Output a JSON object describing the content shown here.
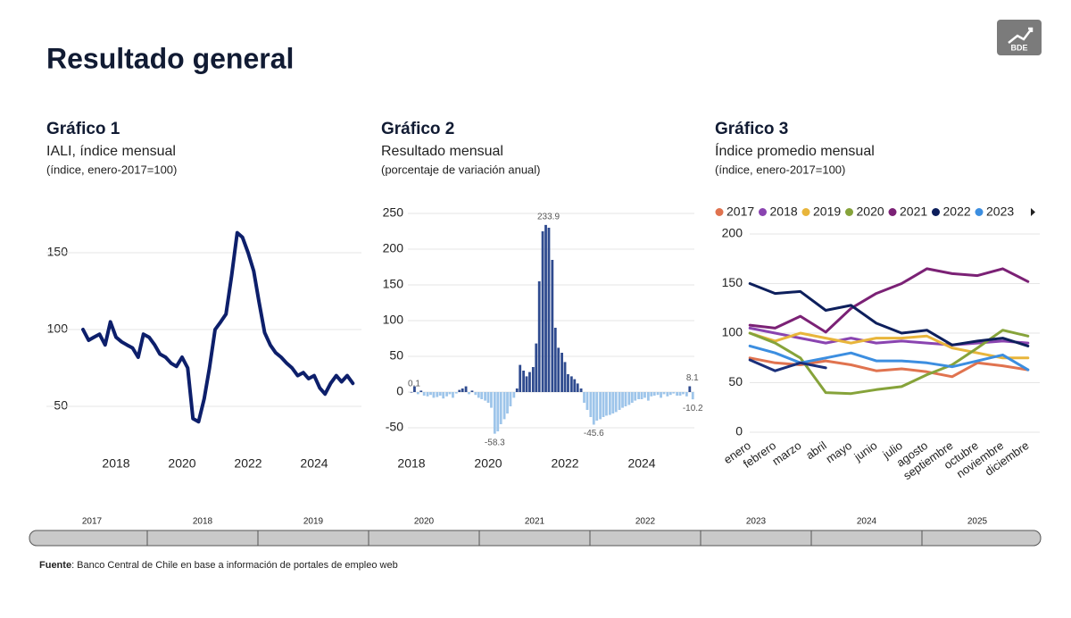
{
  "header": {
    "title": "Resultado general",
    "logo": "BDE"
  },
  "chart_data": [
    {
      "type": "line",
      "title": "Gráfico 1",
      "subtitle": "IALI, índice mensual",
      "note": "(índice, enero-2017=100)",
      "color": "#0d1f6b",
      "grid": true,
      "x": [
        2017.0,
        2017.17,
        2017.33,
        2017.5,
        2017.67,
        2017.83,
        2018.0,
        2018.17,
        2018.33,
        2018.5,
        2018.67,
        2018.83,
        2019.0,
        2019.17,
        2019.33,
        2019.5,
        2019.67,
        2019.83,
        2020.0,
        2020.17,
        2020.33,
        2020.5,
        2020.67,
        2020.83,
        2021.0,
        2021.17,
        2021.33,
        2021.5,
        2021.67,
        2021.83,
        2022.0,
        2022.17,
        2022.33,
        2022.5,
        2022.67,
        2022.83,
        2023.0,
        2023.17,
        2023.33,
        2023.5,
        2023.67,
        2023.83,
        2024.0,
        2024.17,
        2024.33,
        2024.5,
        2024.67,
        2024.83,
        2025.0,
        2025.17
      ],
      "values": [
        100,
        93,
        95,
        97,
        90,
        105,
        95,
        92,
        90,
        88,
        82,
        97,
        95,
        90,
        84,
        82,
        78,
        76,
        82,
        75,
        42,
        40,
        55,
        75,
        100,
        105,
        110,
        135,
        163,
        160,
        150,
        138,
        118,
        98,
        90,
        85,
        82,
        78,
        75,
        70,
        72,
        68,
        70,
        62,
        58,
        65,
        70,
        66,
        70,
        65
      ],
      "xlim": [
        2016.8,
        2025.5
      ],
      "xticks": [
        2018,
        2020,
        2022,
        2024
      ],
      "ylim": [
        35,
        170
      ],
      "yticks": [
        50,
        100,
        150
      ]
    },
    {
      "type": "bar",
      "title": "Gráfico 2",
      "subtitle": "Resultado mensual",
      "note": "(porcentaje de variación anual)",
      "color": "#2f4b8f",
      "negative_color": "#9ec5ea",
      "grid": true,
      "x": [
        2018.0,
        2018.08,
        2018.17,
        2018.25,
        2018.33,
        2018.42,
        2018.5,
        2018.58,
        2018.67,
        2018.75,
        2018.83,
        2018.92,
        2019.0,
        2019.08,
        2019.17,
        2019.25,
        2019.33,
        2019.42,
        2019.5,
        2019.58,
        2019.67,
        2019.75,
        2019.83,
        2019.92,
        2020.0,
        2020.08,
        2020.17,
        2020.25,
        2020.33,
        2020.42,
        2020.5,
        2020.58,
        2020.67,
        2020.75,
        2020.83,
        2020.92,
        2021.0,
        2021.08,
        2021.17,
        2021.25,
        2021.33,
        2021.42,
        2021.5,
        2021.58,
        2021.67,
        2021.75,
        2021.83,
        2021.92,
        2022.0,
        2022.08,
        2022.17,
        2022.25,
        2022.33,
        2022.42,
        2022.5,
        2022.58,
        2022.67,
        2022.75,
        2022.83,
        2022.92,
        2023.0,
        2023.08,
        2023.17,
        2023.25,
        2023.33,
        2023.42,
        2023.5,
        2023.58,
        2023.67,
        2023.75,
        2023.83,
        2023.92,
        2024.0,
        2024.08,
        2024.17,
        2024.25,
        2024.33,
        2024.42,
        2024.5,
        2024.58,
        2024.67,
        2024.75,
        2024.83,
        2024.92,
        2025.0,
        2025.08,
        2025.17,
        2025.25,
        2025.33
      ],
      "values": [
        0.1,
        8,
        -3,
        2,
        -5,
        -6,
        -4,
        -8,
        -7,
        -5,
        -9,
        -6,
        -3,
        -8,
        -2,
        3,
        5,
        8,
        -3,
        2,
        -4,
        -8,
        -10,
        -12,
        -15,
        -22,
        -58.3,
        -55,
        -45,
        -38,
        -30,
        -20,
        -8,
        5,
        38,
        30,
        22,
        28,
        35,
        68,
        155,
        225,
        233.9,
        230,
        185,
        90,
        62,
        55,
        42,
        25,
        22,
        18,
        12,
        5,
        -15,
        -25,
        -35,
        -45.6,
        -40,
        -38,
        -35,
        -33,
        -32,
        -30,
        -28,
        -25,
        -22,
        -20,
        -18,
        -15,
        -12,
        -10,
        -10,
        -8,
        -12,
        -6,
        -5,
        -4,
        -8,
        -3,
        -6,
        -4,
        -2,
        -5,
        -5,
        -3,
        -6,
        8.1,
        -10.2
      ],
      "value_labels": [
        "0.1",
        null,
        null,
        null,
        null,
        null,
        null,
        null,
        null,
        null,
        null,
        null,
        null,
        null,
        null,
        null,
        null,
        null,
        null,
        null,
        null,
        null,
        null,
        null,
        null,
        null,
        "-58.3",
        null,
        null,
        null,
        null,
        null,
        null,
        null,
        null,
        null,
        null,
        null,
        null,
        null,
        null,
        null,
        "233.9",
        null,
        null,
        null,
        null,
        null,
        null,
        null,
        null,
        null,
        null,
        null,
        null,
        null,
        null,
        "-45.6",
        null,
        null,
        null,
        null,
        null,
        null,
        null,
        null,
        null,
        null,
        null,
        null,
        null,
        null,
        null,
        null,
        null,
        null,
        null,
        null,
        null,
        null,
        null,
        null,
        null,
        null,
        null,
        null,
        null,
        "8.1",
        "-10.2"
      ],
      "xlim": [
        2017.9,
        2025.45
      ],
      "xticks": [
        2018,
        2020,
        2022,
        2024
      ],
      "ylim": [
        -75,
        260
      ],
      "yticks": [
        -50,
        0,
        50,
        100,
        150,
        200,
        250
      ]
    },
    {
      "type": "line",
      "title": "Gráfico 3",
      "subtitle": "Índice promedio mensual",
      "note": "(índice, enero-2017=100)",
      "grid": true,
      "legend": "top",
      "categories": [
        "enero",
        "febrero",
        "marzo",
        "abril",
        "mayo",
        "junio",
        "julio",
        "agosto",
        "septiembre",
        "octubre",
        "noviembre",
        "diciembre"
      ],
      "series": [
        {
          "name": "2017",
          "color": "#e0734f",
          "values": [
            75,
            70,
            68,
            72,
            68,
            62,
            64,
            61,
            56,
            70,
            67,
            63
          ]
        },
        {
          "name": "2018",
          "color": "#8a44b0",
          "values": [
            105,
            100,
            95,
            90,
            95,
            90,
            92,
            90,
            88,
            90,
            92,
            90
          ]
        },
        {
          "name": "2019",
          "color": "#e8b53b",
          "values": [
            100,
            92,
            100,
            95,
            90,
            95,
            95,
            97,
            85,
            80,
            75,
            75
          ]
        },
        {
          "name": "2020",
          "color": "#86a33a",
          "values": [
            100,
            90,
            75,
            40,
            39,
            43,
            46,
            58,
            68,
            85,
            103,
            97
          ]
        },
        {
          "name": "2021",
          "color": "#7b2175",
          "values": [
            108,
            105,
            117,
            101,
            125,
            140,
            150,
            165,
            160,
            158,
            165,
            152
          ]
        },
        {
          "name": "2022",
          "color": "#0d1f5c",
          "values": [
            150,
            140,
            142,
            123,
            128,
            110,
            100,
            103,
            88,
            92,
            95,
            87
          ]
        },
        {
          "name": "2023",
          "color": "#3c8ee0",
          "values": [
            87,
            80,
            70,
            75,
            80,
            72,
            72,
            70,
            66,
            72,
            78,
            63
          ]
        },
        {
          "color": "#1a2f7a",
          "values": [
            73,
            62,
            70,
            65,
            null,
            null,
            null,
            null,
            null,
            null,
            null,
            null
          ]
        }
      ],
      "ylim": [
        0,
        200
      ],
      "yticks": [
        0,
        50,
        100,
        150,
        200
      ]
    }
  ],
  "timeline": [
    "2017",
    "2018",
    "2019",
    "2020",
    "2021",
    "2022",
    "2023",
    "2024",
    "2025"
  ],
  "footer": {
    "label": "Fuente",
    "text": ": Banco Central de Chile en base a información de portales de empleo web"
  }
}
